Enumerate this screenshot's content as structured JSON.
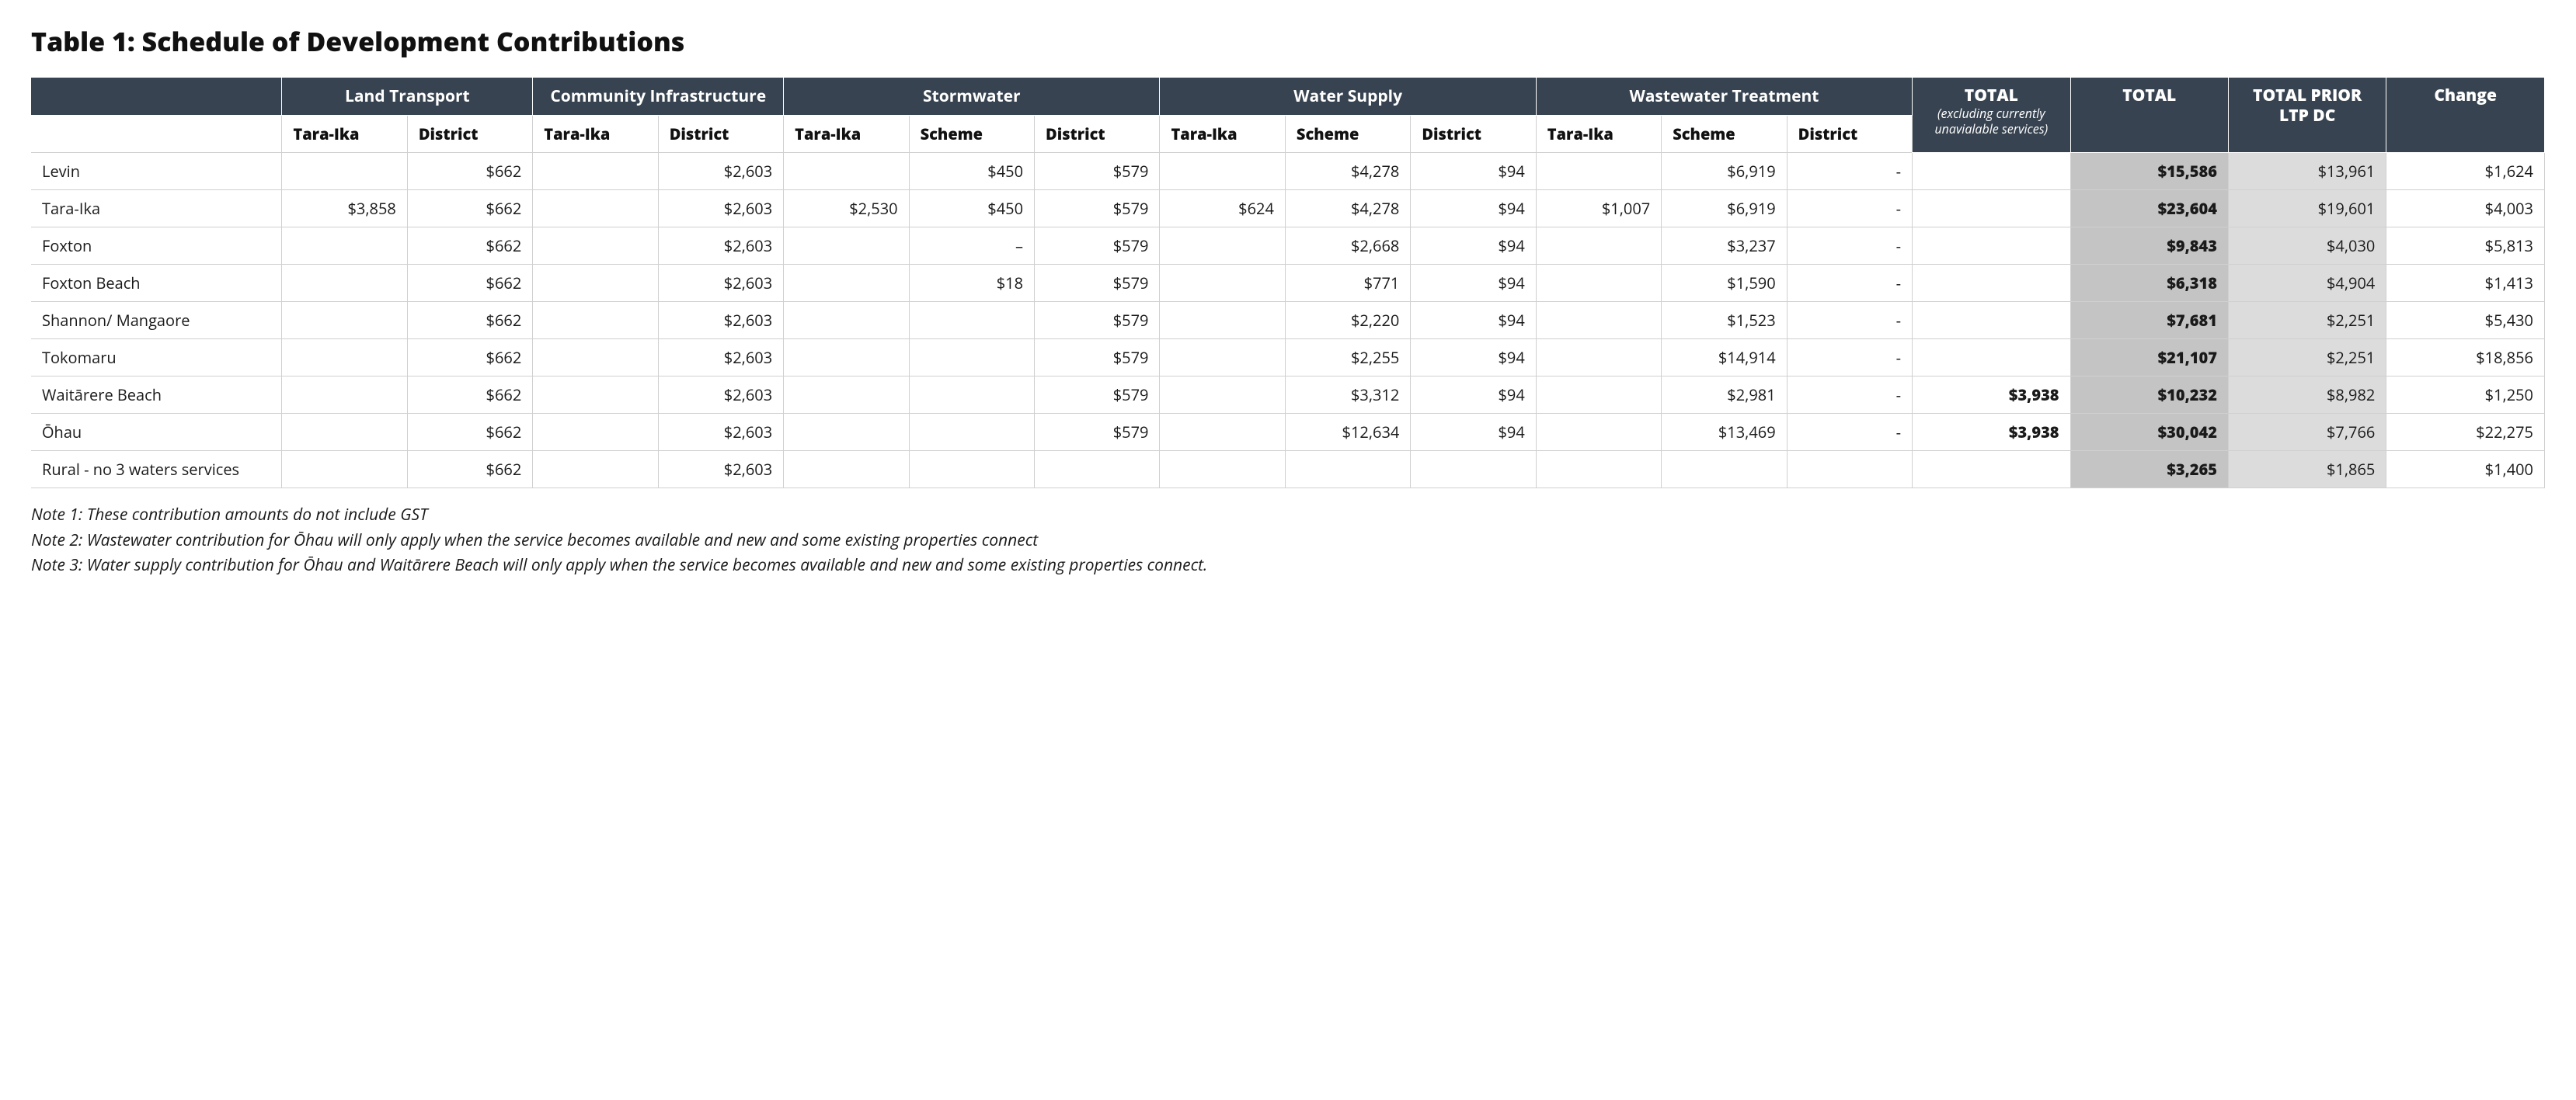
{
  "title": "Table 1: Schedule of Development Contributions",
  "groupHeaders": {
    "landTransport": "Land Transport",
    "community": "Community Infrastructure",
    "stormwater": "Stormwater",
    "waterSupply": "Water Supply",
    "wastewater": "Wastewater Treatment",
    "totalExcl": {
      "big": "TOTAL",
      "small": "(excluding currently unavialable services)"
    },
    "total": "TOTAL",
    "totalPrior": "TOTAL PRIOR LTP DC",
    "change": "Change"
  },
  "subHeaders": {
    "taraIka": "Tara-Ika",
    "district": "District",
    "scheme": "Scheme"
  },
  "rows": [
    {
      "label": "Levin",
      "lt_tara": "",
      "lt_dist": "$662",
      "ci_tara": "",
      "ci_dist": "$2,603",
      "sw_tara": "",
      "sw_sch": "$450",
      "sw_dist": "$579",
      "ws_tara": "",
      "ws_sch": "$4,278",
      "ws_dist": "$94",
      "ww_tara": "",
      "ww_sch": "$6,919",
      "ww_dist": "-",
      "tot_excl": "",
      "tot": "$15,586",
      "tot_prior": "$13,961",
      "change": "$1,624"
    },
    {
      "label": "Tara-Ika",
      "lt_tara": "$3,858",
      "lt_dist": "$662",
      "ci_tara": "",
      "ci_dist": "$2,603",
      "sw_tara": "$2,530",
      "sw_sch": "$450",
      "sw_dist": "$579",
      "ws_tara": "$624",
      "ws_sch": "$4,278",
      "ws_dist": "$94",
      "ww_tara": "$1,007",
      "ww_sch": "$6,919",
      "ww_dist": "-",
      "tot_excl": "",
      "tot": "$23,604",
      "tot_prior": "$19,601",
      "change": "$4,003"
    },
    {
      "label": "Foxton",
      "lt_tara": "",
      "lt_dist": "$662",
      "ci_tara": "",
      "ci_dist": "$2,603",
      "sw_tara": "",
      "sw_sch": "–",
      "sw_dist": "$579",
      "ws_tara": "",
      "ws_sch": "$2,668",
      "ws_dist": "$94",
      "ww_tara": "",
      "ww_sch": "$3,237",
      "ww_dist": "-",
      "tot_excl": "",
      "tot": "$9,843",
      "tot_prior": "$4,030",
      "change": "$5,813"
    },
    {
      "label": "Foxton Beach",
      "lt_tara": "",
      "lt_dist": "$662",
      "ci_tara": "",
      "ci_dist": "$2,603",
      "sw_tara": "",
      "sw_sch": "$18",
      "sw_dist": "$579",
      "ws_tara": "",
      "ws_sch": "$771",
      "ws_dist": "$94",
      "ww_tara": "",
      "ww_sch": "$1,590",
      "ww_dist": "-",
      "tot_excl": "",
      "tot": "$6,318",
      "tot_prior": "$4,904",
      "change": "$1,413"
    },
    {
      "label": "Shannon/ Mangaore",
      "lt_tara": "",
      "lt_dist": "$662",
      "ci_tara": "",
      "ci_dist": "$2,603",
      "sw_tara": "",
      "sw_sch": "",
      "sw_dist": "$579",
      "ws_tara": "",
      "ws_sch": "$2,220",
      "ws_dist": "$94",
      "ww_tara": "",
      "ww_sch": "$1,523",
      "ww_dist": "-",
      "tot_excl": "",
      "tot": "$7,681",
      "tot_prior": "$2,251",
      "change": "$5,430"
    },
    {
      "label": "Tokomaru",
      "lt_tara": "",
      "lt_dist": "$662",
      "ci_tara": "",
      "ci_dist": "$2,603",
      "sw_tara": "",
      "sw_sch": "",
      "sw_dist": "$579",
      "ws_tara": "",
      "ws_sch": "$2,255",
      "ws_dist": "$94",
      "ww_tara": "",
      "ww_sch": "$14,914",
      "ww_dist": "-",
      "tot_excl": "",
      "tot": "$21,107",
      "tot_prior": "$2,251",
      "change": "$18,856"
    },
    {
      "label": "Waitārere Beach",
      "lt_tara": "",
      "lt_dist": "$662",
      "ci_tara": "",
      "ci_dist": "$2,603",
      "sw_tara": "",
      "sw_sch": "",
      "sw_dist": "$579",
      "ws_tara": "",
      "ws_sch": "$3,312",
      "ws_dist": "$94",
      "ww_tara": "",
      "ww_sch": "$2,981",
      "ww_dist": "-",
      "tot_excl": "$3,938",
      "tot": "$10,232",
      "tot_prior": "$8,982",
      "change": "$1,250"
    },
    {
      "label": "Ōhau",
      "lt_tara": "",
      "lt_dist": "$662",
      "ci_tara": "",
      "ci_dist": "$2,603",
      "sw_tara": "",
      "sw_sch": "",
      "sw_dist": "$579",
      "ws_tara": "",
      "ws_sch": "$12,634",
      "ws_dist": "$94",
      "ww_tara": "",
      "ww_sch": "$13,469",
      "ww_dist": "-",
      "tot_excl": "$3,938",
      "tot": "$30,042",
      "tot_prior": "$7,766",
      "change": "$22,275"
    },
    {
      "label": "Rural - no 3 waters services",
      "lt_tara": "",
      "lt_dist": "$662",
      "ci_tara": "",
      "ci_dist": "$2,603",
      "sw_tara": "",
      "sw_sch": "",
      "sw_dist": "",
      "ws_tara": "",
      "ws_sch": "",
      "ws_dist": "",
      "ww_tara": "",
      "ww_sch": "",
      "ww_dist": "",
      "tot_excl": "",
      "tot": "$3,265",
      "tot_prior": "$1,865",
      "change": "$1,400"
    }
  ],
  "notes": [
    "Note 1: These contribution amounts do not include GST",
    "Note 2: Wastewater contribution for Ōhau will only apply when the service becomes available and new and some existing properties connect",
    "Note 3: Water supply contribution for Ōhau and Waitārere Beach will only apply when the service becomes available and new and some existing properties connect."
  ],
  "style": {
    "header_bg": "#374350",
    "header_fg": "#ffffff",
    "border_color": "#d0d0d0",
    "shade_mid": "#c4c4c4",
    "shade_light": "#dcdcdc",
    "title_fontsize": 34,
    "body_fontsize": 20
  }
}
